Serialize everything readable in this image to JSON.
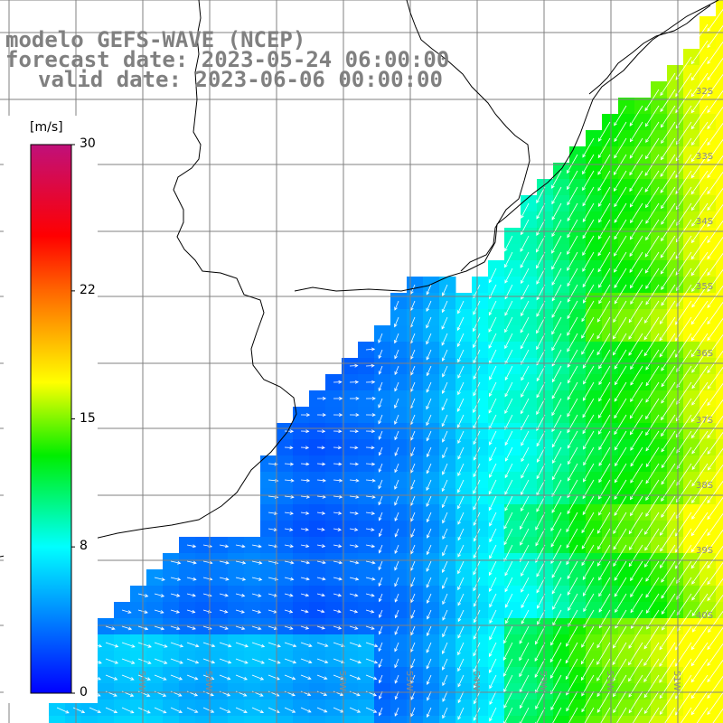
{
  "title": {
    "line1": "modelo GEFS-WAVE (NCEP)",
    "line2": "forecast date: 2023-05-24 06:00:00",
    "line3": "valid date: 2023-06-06 00:00:00"
  },
  "colorbar": {
    "unit": "[m/s]",
    "min": 0,
    "max": 30,
    "tick_labels": [
      "30",
      "22",
      "15",
      "8",
      "0"
    ],
    "tick_values": [
      30,
      22,
      15,
      8,
      0
    ],
    "stops": [
      {
        "v": 0,
        "color": "#0000ff"
      },
      {
        "v": 8,
        "color": "#00ffff"
      },
      {
        "v": 13,
        "color": "#00ee00"
      },
      {
        "v": 17,
        "color": "#ffff00"
      },
      {
        "v": 22,
        "color": "#ff6600"
      },
      {
        "v": 25,
        "color": "#ff0000"
      },
      {
        "v": 30,
        "color": "#c0107a"
      }
    ]
  },
  "map": {
    "field": "wind speed with direction vectors",
    "lon_labels": [
      "59W",
      "58W",
      "56W",
      "55W",
      "54W",
      "53W",
      "52W",
      "51W"
    ],
    "lat_labels": [
      "32S",
      "33S",
      "34S",
      "35S",
      "36S",
      "37S",
      "38S",
      "39S",
      "40S"
    ],
    "land_color": "#ffffff",
    "grid_color": "#808080",
    "coast_color": "#000000",
    "vector_color": "#ffffff"
  }
}
